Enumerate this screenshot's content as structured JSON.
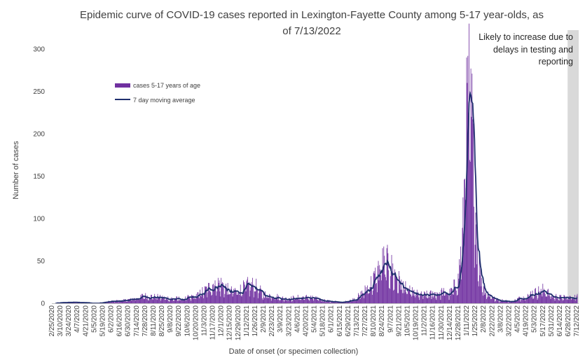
{
  "chart_data": {
    "type": "bar",
    "title_line1": "Epidemic curve of COVID-19 cases reported in Lexington-Fayette County among 5-17 year-olds, as",
    "title_line2": "of 7/13/2022",
    "xlabel": "Date of onset (or specimen collection)",
    "ylabel": "Number of cases",
    "ylim": [
      0,
      300
    ],
    "yticks": [
      0,
      50,
      100,
      150,
      200,
      250,
      300
    ],
    "xlim": [
      "2/25/2020",
      "7/13/2022"
    ],
    "grid": false,
    "legend_position": "upper-left",
    "series": [
      {
        "name": "cases 5-17 years of age",
        "kind": "bar",
        "color": "#7030A0"
      },
      {
        "name": "7 day moving average",
        "kind": "line",
        "color": "#1F2F6E"
      }
    ],
    "annotation": {
      "lines": [
        "Likely to increase due to",
        "delays in testing and",
        "reporting"
      ],
      "shaded_from": "6/27/2022",
      "shaded_to": "7/13/2022",
      "shade_color": "#D9D9D9"
    },
    "x_tick_labels": [
      "2/25/2020",
      "3/10/2020",
      "3/24/2020",
      "4/7/2020",
      "4/21/2020",
      "5/5/2020",
      "5/19/2020",
      "6/2/2020",
      "6/16/2020",
      "6/30/2020",
      "7/14/2020",
      "7/28/2020",
      "8/11/2020",
      "8/25/2020",
      "9/8/2020",
      "9/22/2020",
      "10/6/2020",
      "10/20/2020",
      "11/3/2020",
      "11/17/2020",
      "12/1/2020",
      "12/15/2020",
      "12/29/2020",
      "1/12/2021",
      "1/26/2021",
      "2/9/2021",
      "2/23/2021",
      "3/9/2021",
      "3/23/2021",
      "4/6/2021",
      "4/20/2021",
      "5/4/2021",
      "5/18/2021",
      "6/1/2021",
      "6/15/2021",
      "6/29/2021",
      "7/13/2021",
      "7/27/2021",
      "8/10/2021",
      "8/24/2021",
      "9/7/2021",
      "9/21/2021",
      "10/5/2021",
      "10/19/2021",
      "11/2/2021",
      "11/16/2021",
      "11/30/2021",
      "12/14/2021",
      "12/28/2021",
      "1/11/2022",
      "1/25/2022",
      "2/8/2022",
      "2/22/2022",
      "3/8/2022",
      "3/22/2022",
      "4/5/2022",
      "4/19/2022",
      "5/3/2022",
      "5/17/2022",
      "5/31/2022",
      "6/14/2022",
      "6/28/2022",
      "7/12/2022"
    ],
    "daily_cases_keypoints": [
      [
        "2/25/2020",
        0
      ],
      [
        "3/20/2020",
        1
      ],
      [
        "4/15/2020",
        1
      ],
      [
        "5/10/2020",
        0
      ],
      [
        "6/1/2020",
        2
      ],
      [
        "6/20/2020",
        3
      ],
      [
        "7/10/2020",
        5
      ],
      [
        "7/25/2020",
        8
      ],
      [
        "8/15/2020",
        7
      ],
      [
        "9/10/2020",
        5
      ],
      [
        "10/1/2020",
        5
      ],
      [
        "10/20/2020",
        8
      ],
      [
        "11/5/2020",
        14
      ],
      [
        "11/20/2020",
        22
      ],
      [
        "12/1/2020",
        21
      ],
      [
        "12/15/2020",
        13
      ],
      [
        "12/30/2020",
        14
      ],
      [
        "1/12/2021",
        19
      ],
      [
        "1/25/2021",
        20
      ],
      [
        "2/8/2021",
        10
      ],
      [
        "2/25/2021",
        8
      ],
      [
        "3/15/2021",
        5
      ],
      [
        "4/5/2021",
        6
      ],
      [
        "4/25/2021",
        7
      ],
      [
        "5/15/2021",
        4
      ],
      [
        "6/1/2021",
        2
      ],
      [
        "6/20/2021",
        1
      ],
      [
        "7/10/2021",
        5
      ],
      [
        "7/25/2021",
        12
      ],
      [
        "8/10/2021",
        25
      ],
      [
        "8/25/2021",
        44
      ],
      [
        "9/5/2021",
        42
      ],
      [
        "9/20/2021",
        25
      ],
      [
        "10/5/2021",
        14
      ],
      [
        "10/25/2021",
        9
      ],
      [
        "11/15/2021",
        10
      ],
      [
        "12/1/2021",
        12
      ],
      [
        "12/15/2021",
        11
      ],
      [
        "12/28/2021",
        25
      ],
      [
        "1/5/2022",
        80
      ],
      [
        "1/10/2022",
        170
      ],
      [
        "1/14/2022",
        218
      ],
      [
        "1/18/2022",
        205
      ],
      [
        "1/23/2022",
        140
      ],
      [
        "1/28/2022",
        70
      ],
      [
        "2/3/2022",
        30
      ],
      [
        "2/12/2022",
        12
      ],
      [
        "3/1/2022",
        4
      ],
      [
        "3/25/2022",
        2
      ],
      [
        "4/10/2022",
        6
      ],
      [
        "4/25/2022",
        10
      ],
      [
        "5/10/2022",
        13
      ],
      [
        "5/20/2022",
        15
      ],
      [
        "6/1/2022",
        8
      ],
      [
        "6/20/2022",
        6
      ],
      [
        "7/13/2022",
        7
      ]
    ]
  }
}
